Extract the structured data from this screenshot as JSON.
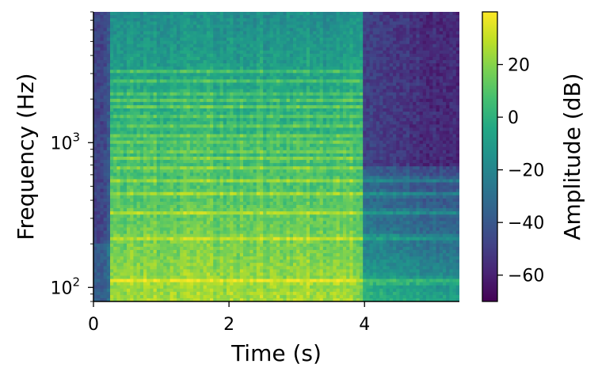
{
  "chart_data": {
    "type": "heatmap",
    "subtype": "spectrogram",
    "title": "",
    "xlabel": "Time (s)",
    "ylabel": "Frequency (Hz)",
    "xlim": [
      0,
      5.4
    ],
    "ylim_hz": [
      80,
      8000
    ],
    "y_scale": "log",
    "x_ticks": [
      {
        "value": 0,
        "label": "0"
      },
      {
        "value": 2,
        "label": "2"
      },
      {
        "value": 4,
        "label": "4"
      }
    ],
    "y_ticks": [
      {
        "value": 100,
        "base": "10",
        "exp": "2"
      },
      {
        "value": 1000,
        "base": "10",
        "exp": "3"
      }
    ],
    "colorbar": {
      "label": "Amplitude (dB)",
      "colormap": "viridis",
      "range": [
        -70,
        40
      ],
      "ticks": [
        {
          "value": 20,
          "label": "20"
        },
        {
          "value": 0,
          "label": "0"
        },
        {
          "value": -20,
          "label": "−20"
        },
        {
          "value": -40,
          "label": "−40"
        },
        {
          "value": -60,
          "label": "−60"
        }
      ]
    },
    "harmonics_hz": [
      110,
      220,
      330,
      440,
      550,
      660,
      770,
      880,
      990,
      1100,
      1320,
      1540,
      1760,
      1980,
      2200,
      2640,
      3080
    ],
    "sustain_end_s": 3.75,
    "note_end_s": 4.0,
    "onset_s": 0.25,
    "grid": false
  }
}
